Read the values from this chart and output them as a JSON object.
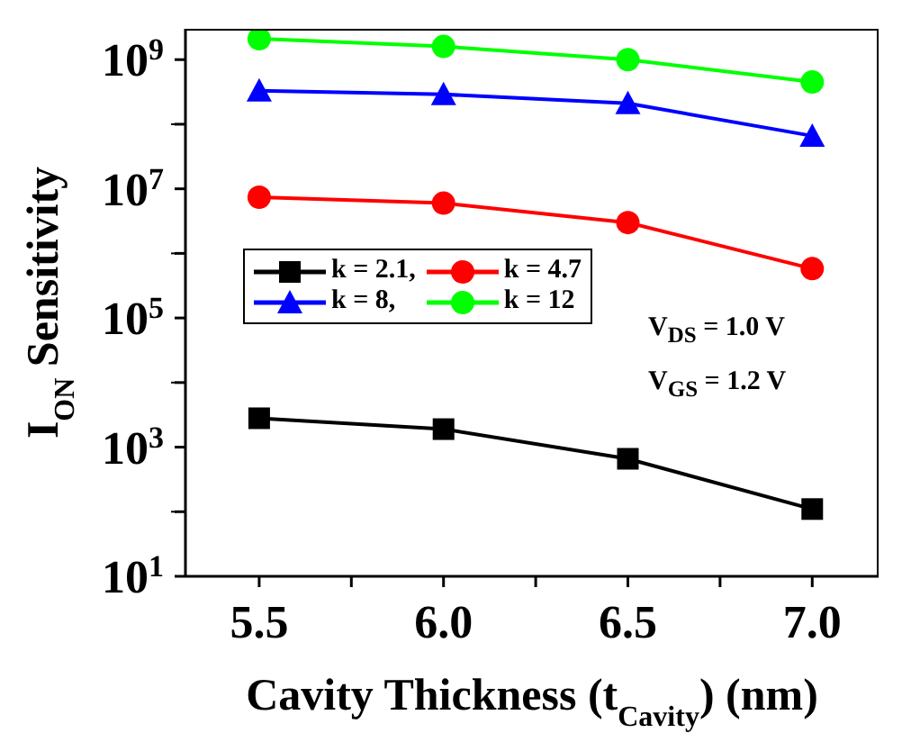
{
  "chart_data": {
    "type": "line",
    "xlabel": "Cavity Thickness (t$_{Cavity}$) (nm)",
    "ylabel": "I$_{ON}$ Sensitivity",
    "x": [
      5.5,
      6.0,
      6.5,
      7.0
    ],
    "series": [
      {
        "name": "k = 2.1,",
        "color": "#000000",
        "marker": "square",
        "values": [
          2800,
          1900,
          660,
          110
        ]
      },
      {
        "name": "k = 4.7",
        "color": "#ff0000",
        "marker": "circle",
        "values": [
          7400000,
          6000000,
          3000000,
          580000
        ]
      },
      {
        "name": "k = 8,",
        "color": "#0000ff",
        "marker": "triangle",
        "values": [
          330000000,
          290000000,
          210000000,
          66000000
        ]
      },
      {
        "name": "k = 12",
        "color": "#00ff00",
        "marker": "circle",
        "values": [
          2100000000,
          1600000000,
          1000000000,
          450000000
        ]
      }
    ],
    "log": "y",
    "xlim": [
      5.3,
      7.18
    ],
    "ylim": [
      10,
      3000000000
    ],
    "xticks": [
      {
        "value": 5.5,
        "label": "5.5"
      },
      {
        "value": 5.75,
        "label": null
      },
      {
        "value": 6,
        "label": "6.0"
      },
      {
        "value": 6.25,
        "label": null
      },
      {
        "value": 6.5,
        "label": "6.5"
      },
      {
        "value": 6.75,
        "label": null
      },
      {
        "value": 7,
        "label": "7.0"
      }
    ],
    "yticks": [
      {
        "value": 10,
        "label": "10$^{1}$"
      },
      {
        "value": 100,
        "label": null
      },
      {
        "value": 1000,
        "label": "10$^{3}$"
      },
      {
        "value": 10000,
        "label": null
      },
      {
        "value": 100000,
        "label": "10$^{5}$"
      },
      {
        "value": 1000000,
        "label": null
      },
      {
        "value": 10000000,
        "label": "10$^{7}$"
      },
      {
        "value": 100000000,
        "label": null
      },
      {
        "value": 1000000000,
        "label": "10$^{9}$"
      }
    ],
    "legend": "left",
    "grid": false,
    "line_style": "solid",
    "annotations": [
      "V$_{DS}$ = 1.0 V",
      "V$_{GS}$ = 1.2 V"
    ]
  }
}
